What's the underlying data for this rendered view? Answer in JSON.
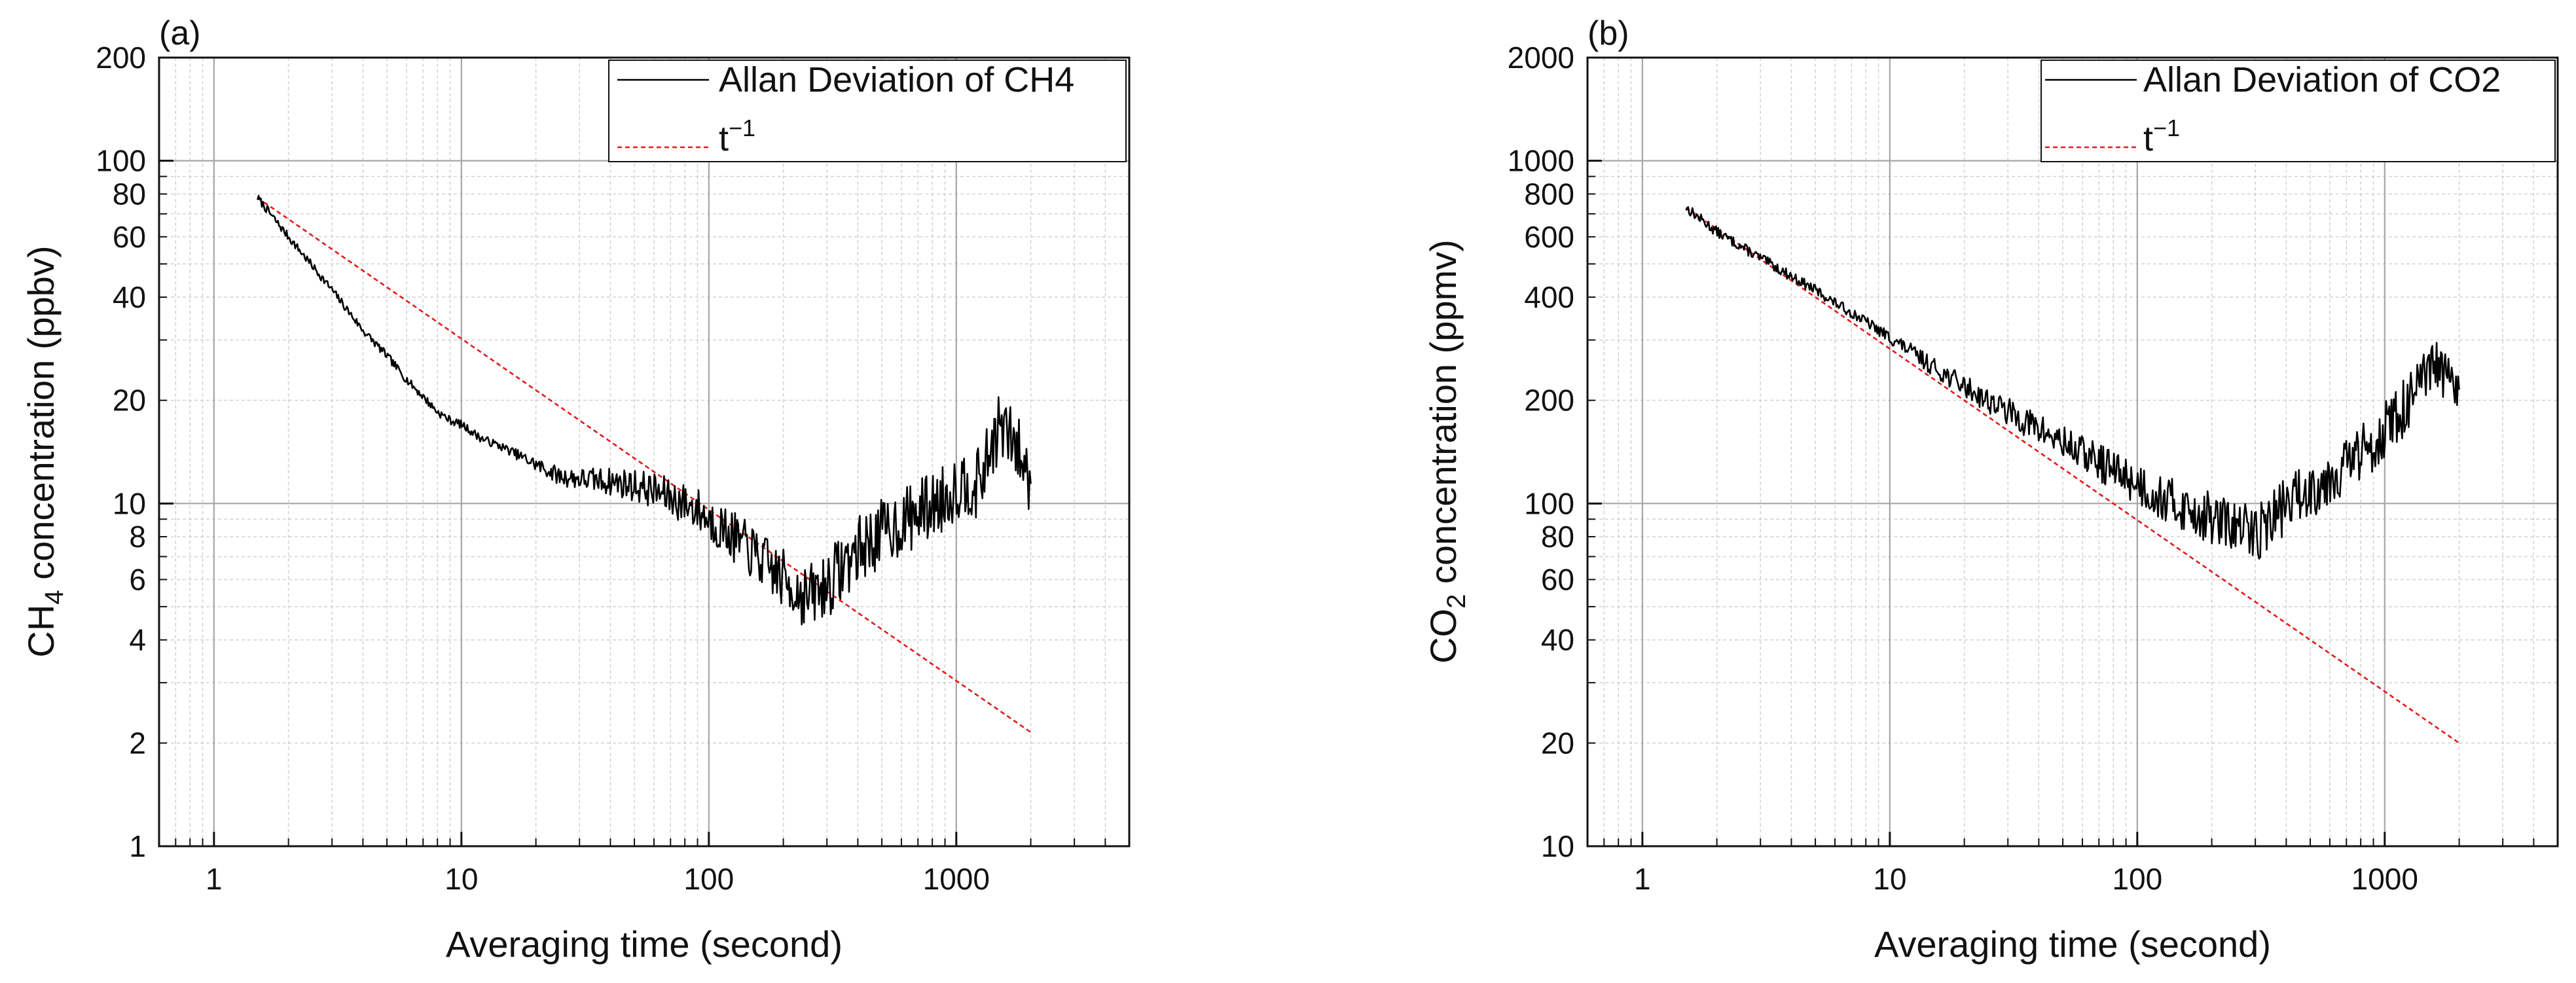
{
  "colors": {
    "background": "#ffffff",
    "axis": "#111111",
    "major_grid": "#a6a6a6",
    "minor_grid": "#d2d2d2",
    "data_line": "#000000",
    "fit_line": "#e31a1c"
  },
  "chart_data": [
    {
      "type": "line",
      "panel_label": "(a)",
      "title": "",
      "xlabel": "Averaging time (second)",
      "ylabel": {
        "main": "CH",
        "sub": "4",
        "rest": " concentration (ppbv)"
      },
      "xscale": "log",
      "yscale": "log",
      "xlim": [
        0.6,
        5000
      ],
      "ylim": [
        1,
        200
      ],
      "grid": true,
      "x_ticks": [
        {
          "value": 1,
          "label": "1"
        },
        {
          "value": 10,
          "label": "10"
        },
        {
          "value": 100,
          "label": "100"
        },
        {
          "value": 1000,
          "label": "1000"
        }
      ],
      "y_ticks": [
        {
          "value": 1,
          "label": "1"
        },
        {
          "value": 2,
          "label": "2"
        },
        {
          "value": 4,
          "label": "4"
        },
        {
          "value": 6,
          "label": "6"
        },
        {
          "value": 8,
          "label": "8"
        },
        {
          "value": 10,
          "label": "10"
        },
        {
          "value": 20,
          "label": "20"
        },
        {
          "value": 40,
          "label": "40"
        },
        {
          "value": 60,
          "label": "60"
        },
        {
          "value": 80,
          "label": "80"
        },
        {
          "value": 100,
          "label": "100"
        },
        {
          "value": 200,
          "label": "200"
        }
      ],
      "legend": {
        "position": "top-right",
        "entries": [
          {
            "label": "Allan Deviation of CH4",
            "style": "solid"
          },
          {
            "label_base": "t",
            "label_exp": "−1",
            "style": "dashed"
          }
        ]
      },
      "series": [
        {
          "name": "Allan Deviation of CH4",
          "style": "solid",
          "noise": {
            "start": 15,
            "amp_low": 0.012,
            "amp_high": 0.1,
            "seed": 7
          },
          "x": [
            1.5,
            2,
            3,
            4,
            5,
            6,
            7,
            8,
            9,
            10,
            12,
            15,
            20,
            25,
            30,
            40,
            50,
            60,
            70,
            80,
            90,
            100,
            120,
            150,
            200,
            250,
            300,
            350,
            400,
            500,
            600,
            700,
            800,
            900,
            1000,
            1100,
            1200,
            1300,
            1400,
            1500,
            1600,
            1700,
            1800,
            1900,
            2000
          ],
          "y": [
            78,
            60,
            42,
            32,
            27,
            23,
            20.5,
            18.5,
            17.5,
            17,
            15.5,
            14.5,
            13,
            12,
            11.8,
            11.6,
            11.3,
            10.9,
            10.4,
            10,
            9.6,
            9,
            8.2,
            7.2,
            6,
            5.3,
            5.8,
            6.6,
            7.3,
            8.2,
            8.8,
            9.4,
            9.9,
            10.4,
            11.2,
            11.6,
            11.2,
            12.5,
            15,
            16.8,
            16,
            15,
            14,
            12.6,
            11.5
          ]
        },
        {
          "name": "t⁻¹",
          "style": "dashed",
          "x": [
            1.5,
            2000
          ],
          "y": [
            78,
            2.15
          ]
        }
      ]
    },
    {
      "type": "line",
      "panel_label": "(b)",
      "title": "",
      "xlabel": "Averaging time (second)",
      "ylabel": {
        "main": "CO",
        "sub": "2",
        "rest": " concentration (ppmv)"
      },
      "xscale": "log",
      "yscale": "log",
      "xlim": [
        0.6,
        5000
      ],
      "ylim": [
        10,
        2000
      ],
      "grid": true,
      "x_ticks": [
        {
          "value": 1,
          "label": "1"
        },
        {
          "value": 10,
          "label": "10"
        },
        {
          "value": 100,
          "label": "100"
        },
        {
          "value": 1000,
          "label": "1000"
        }
      ],
      "y_ticks": [
        {
          "value": 10,
          "label": "10"
        },
        {
          "value": 20,
          "label": "20"
        },
        {
          "value": 40,
          "label": "40"
        },
        {
          "value": 60,
          "label": "60"
        },
        {
          "value": 80,
          "label": "80"
        },
        {
          "value": 100,
          "label": "100"
        },
        {
          "value": 200,
          "label": "200"
        },
        {
          "value": 400,
          "label": "400"
        },
        {
          "value": 600,
          "label": "600"
        },
        {
          "value": 800,
          "label": "800"
        },
        {
          "value": 1000,
          "label": "1000"
        },
        {
          "value": 2000,
          "label": "2000"
        }
      ],
      "legend": {
        "position": "top-right",
        "entries": [
          {
            "label": "Allan Deviation of CO2",
            "style": "solid"
          },
          {
            "label_base": "t",
            "label_exp": "−1",
            "style": "dashed"
          }
        ]
      },
      "series": [
        {
          "name": "Allan Deviation of CO2",
          "style": "solid",
          "noise": {
            "start": 8,
            "amp_low": 0.015,
            "amp_high": 0.085,
            "seed": 13
          },
          "x": [
            1.5,
            2,
            3,
            4,
            5,
            6,
            7,
            8,
            9,
            10,
            12,
            15,
            20,
            25,
            30,
            40,
            50,
            60,
            70,
            80,
            100,
            120,
            150,
            200,
            250,
            300,
            350,
            400,
            500,
            600,
            700,
            800,
            900,
            1000,
            1100,
            1200,
            1300,
            1400,
            1500,
            1600,
            1700,
            1800,
            1900,
            2000
          ],
          "y": [
            730,
            620,
            520,
            460,
            420,
            385,
            360,
            340,
            320,
            305,
            280,
            250,
            220,
            200,
            185,
            165,
            150,
            140,
            132,
            125,
            115,
            105,
            98,
            90,
            85,
            82,
            90,
            100,
            110,
            120,
            130,
            140,
            150,
            165,
            175,
            190,
            205,
            220,
            235,
            255,
            240,
            225,
            212,
            200
          ]
        },
        {
          "name": "t⁻¹",
          "style": "dashed",
          "x": [
            1.5,
            2000
          ],
          "y": [
            730,
            20
          ]
        }
      ]
    }
  ]
}
